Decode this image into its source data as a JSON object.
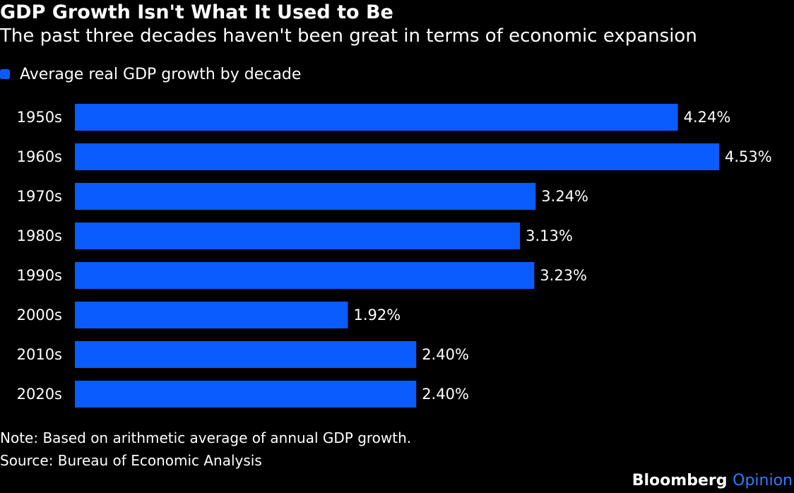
{
  "header": {
    "title": "GDP Growth Isn't What It Used to Be",
    "subtitle": "The past three decades haven't been great in terms of economic expansion"
  },
  "legend": {
    "label": "Average real GDP growth by decade"
  },
  "footer": {
    "note": "Note: Based on arithmetic average of annual GDP growth.",
    "source": "Source: Bureau of Economic Analysis",
    "brand_primary": "Bloomberg",
    "brand_secondary": "Opinion"
  },
  "colors": {
    "background": "#000000",
    "bar": "#0a5cff",
    "text": "#ffffff",
    "brand_accent": "#2f7bff"
  },
  "chart_data": {
    "type": "bar",
    "orientation": "horizontal",
    "categories": [
      "1950s",
      "1960s",
      "1970s",
      "1980s",
      "1990s",
      "2000s",
      "2010s",
      "2020s"
    ],
    "values": [
      4.24,
      4.53,
      3.24,
      3.13,
      3.23,
      1.92,
      2.4,
      2.4
    ],
    "value_labels": [
      "4.24%",
      "4.53%",
      "3.24%",
      "3.13%",
      "3.23%",
      "1.92%",
      "2.40%",
      "2.40%"
    ],
    "series": [
      {
        "name": "Average real GDP growth by decade",
        "values": [
          4.24,
          4.53,
          3.24,
          3.13,
          3.23,
          1.92,
          2.4,
          2.4
        ]
      }
    ],
    "xlim": [
      0,
      4.53
    ],
    "grid": false,
    "legend_position": "top-left"
  }
}
